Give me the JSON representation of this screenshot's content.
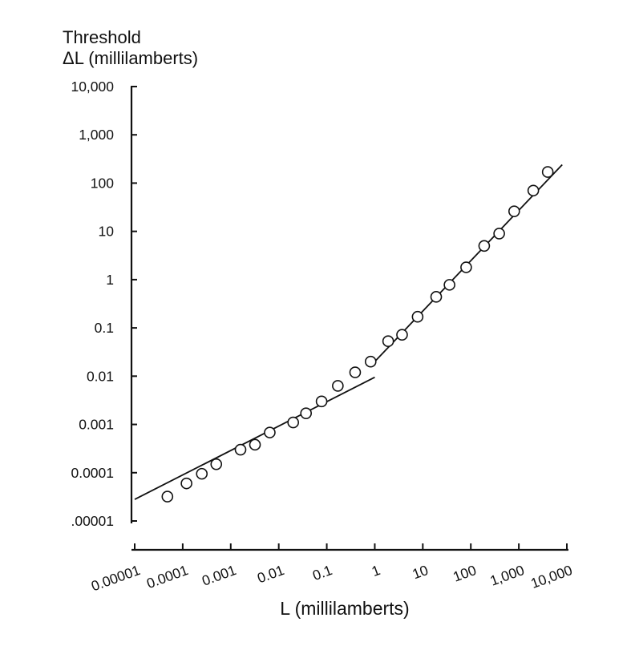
{
  "chart_data": {
    "type": "scatter",
    "title": "",
    "ylabel_lines": [
      "Threshold",
      "ΔL (millilamberts)"
    ],
    "xlabel": "L (millilamberts)",
    "xscale": "log",
    "yscale": "log",
    "xlim": [
      1e-05,
      10000
    ],
    "ylim": [
      1e-05,
      10000
    ],
    "grid": false,
    "legend": "none",
    "x_ticks": [
      {
        "value": 1e-05,
        "label": "0.00001"
      },
      {
        "value": 0.0001,
        "label": "0.0001"
      },
      {
        "value": 0.001,
        "label": "0.001"
      },
      {
        "value": 0.01,
        "label": "0.01"
      },
      {
        "value": 0.1,
        "label": "0.1"
      },
      {
        "value": 1,
        "label": "1"
      },
      {
        "value": 10,
        "label": "10"
      },
      {
        "value": 100,
        "label": "100"
      },
      {
        "value": 1000,
        "label": "1,000"
      },
      {
        "value": 10000,
        "label": "10,000"
      }
    ],
    "y_ticks": [
      {
        "value": 10000,
        "label": "10,000"
      },
      {
        "value": 1000,
        "label": "1,000"
      },
      {
        "value": 100,
        "label": "100"
      },
      {
        "value": 10,
        "label": "10"
      },
      {
        "value": 1,
        "label": "1"
      },
      {
        "value": 0.1,
        "label": "0.1"
      },
      {
        "value": 0.01,
        "label": "0.01"
      },
      {
        "value": 0.001,
        "label": "0.001"
      },
      {
        "value": 0.0001,
        "label": "0.0001"
      },
      {
        "value": 1e-05,
        "label": ".00001"
      }
    ],
    "points": [
      {
        "x": 4.8e-05,
        "y": 3.2e-05
      },
      {
        "x": 0.00012,
        "y": 6e-05
      },
      {
        "x": 0.00025,
        "y": 9.5e-05
      },
      {
        "x": 0.0005,
        "y": 0.00015
      },
      {
        "x": 0.0016,
        "y": 0.0003
      },
      {
        "x": 0.0032,
        "y": 0.00038
      },
      {
        "x": 0.0065,
        "y": 0.00068
      },
      {
        "x": 0.02,
        "y": 0.0011
      },
      {
        "x": 0.037,
        "y": 0.0017
      },
      {
        "x": 0.078,
        "y": 0.003
      },
      {
        "x": 0.17,
        "y": 0.0063
      },
      {
        "x": 0.39,
        "y": 0.012
      },
      {
        "x": 0.82,
        "y": 0.02
      },
      {
        "x": 1.9,
        "y": 0.053
      },
      {
        "x": 3.7,
        "y": 0.072
      },
      {
        "x": 7.8,
        "y": 0.17
      },
      {
        "x": 19,
        "y": 0.44
      },
      {
        "x": 36,
        "y": 0.78
      },
      {
        "x": 80,
        "y": 1.8
      },
      {
        "x": 190,
        "y": 5
      },
      {
        "x": 390,
        "y": 9
      },
      {
        "x": 800,
        "y": 26
      },
      {
        "x": 2000,
        "y": 70
      },
      {
        "x": 4000,
        "y": 170
      }
    ],
    "fit_lines": [
      {
        "x": [
          1e-05,
          1
        ],
        "y": [
          2.8e-05,
          0.0095
        ]
      },
      {
        "x": [
          0.9,
          8000
        ],
        "y": [
          0.018,
          240
        ]
      }
    ]
  }
}
